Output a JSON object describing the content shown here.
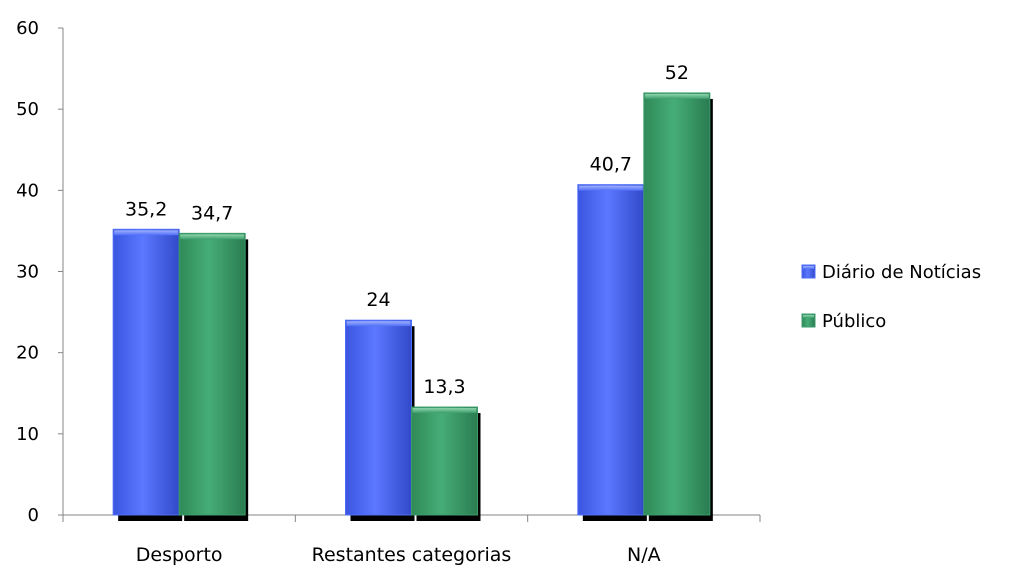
{
  "chart_data": {
    "type": "bar",
    "categories": [
      "Desporto",
      "Restantes categorias",
      "N/A"
    ],
    "series": [
      {
        "name": "Diário de Notícias",
        "values": [
          35.2,
          24,
          40.7
        ],
        "labels": [
          "35,2",
          "24",
          "40,7"
        ],
        "color": "#4f6ef7"
      },
      {
        "name": "Público",
        "values": [
          34.7,
          13.3,
          52
        ],
        "labels": [
          "34,7",
          "13,3",
          "52"
        ],
        "color": "#3c9d6b"
      }
    ],
    "yticks": [
      "0",
      "10",
      "20",
      "30",
      "40",
      "50",
      "60"
    ],
    "ylim": [
      0,
      60
    ],
    "legend_position": "right",
    "grid": false
  }
}
